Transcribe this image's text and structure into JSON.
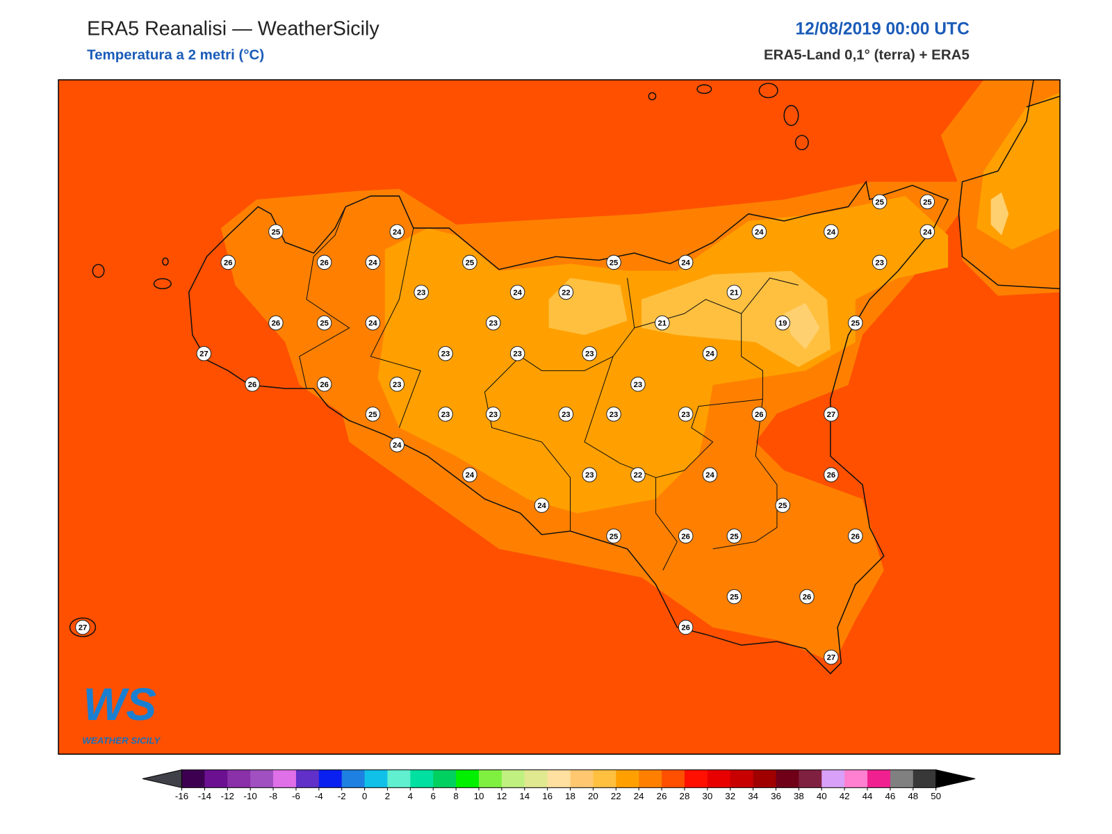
{
  "header": {
    "title": "ERA5 Reanalisi — WeatherSicily",
    "subtitle": "Temperatura a 2 metri (°C)",
    "date": "12/08/2019 00:00 UTC",
    "source": "ERA5-Land 0,1° (terra) + ERA5"
  },
  "stations": [
    25,
    24,
    26,
    26,
    24,
    25,
    25,
    24,
    24,
    24,
    25,
    25,
    24,
    23,
    23,
    24,
    22,
    21,
    26,
    25,
    24,
    23,
    21,
    19,
    25,
    27,
    23,
    23,
    23,
    24,
    26,
    26,
    23,
    23,
    25,
    23,
    23,
    23,
    23,
    23,
    26,
    27,
    24,
    24,
    23,
    22,
    24,
    26,
    24,
    25,
    25,
    26,
    25,
    26,
    25,
    26,
    27,
    26,
    27
  ],
  "logo": {
    "mark": "WS",
    "text": "WEATHER SICILY"
  },
  "colorbar": {
    "ticks": [
      -16,
      -14,
      -12,
      -10,
      -8,
      -6,
      -4,
      -2,
      0,
      2,
      4,
      6,
      8,
      10,
      12,
      14,
      16,
      18,
      20,
      22,
      24,
      26,
      28,
      30,
      32,
      34,
      36,
      38,
      40,
      42,
      44,
      46,
      48,
      50
    ],
    "colors": [
      "#3d0050",
      "#6a1090",
      "#8a30a8",
      "#a050c0",
      "#e070e8",
      "#6030c8",
      "#0a20f0",
      "#1e80e0",
      "#10c0e8",
      "#60f0d0",
      "#00e0a0",
      "#00d060",
      "#00f000",
      "#80f040",
      "#c0f080",
      "#e0e890",
      "#ffe0a0",
      "#ffc870",
      "#ffc040",
      "#ffa000",
      "#ff8000",
      "#ff5000",
      "#ff1000",
      "#e80000",
      "#c80000",
      "#a00000",
      "#700018",
      "#802040",
      "#d8a0f8",
      "#ff80d0",
      "#f02090",
      "#808080",
      "#383838"
    ],
    "under": "#404048",
    "over": "#000000"
  }
}
